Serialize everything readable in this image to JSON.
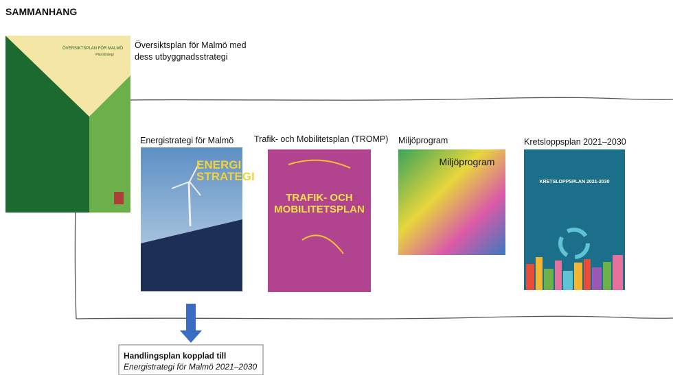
{
  "title": "SAMMANHANG",
  "overview": {
    "label": "Översiktsplan för Malmö med dess utbyggnadsstrategi",
    "cover_title": "ÖVERSIKTSPLAN FÖR MALMÖ",
    "cover_subtitle": "Planstrategi"
  },
  "documents": [
    {
      "label": "Energistrategi för Malmö",
      "cover_title": "ENERGI STRATEGI"
    },
    {
      "label": "Trafik- och Mobilitetsplan (TROMP)",
      "cover_title": "TRAFIK- OCH MOBILITETSPLAN"
    },
    {
      "label": "Miljöprogram",
      "cover_title": "Miljöprogram"
    },
    {
      "label": "Kretsloppsplan 2021–2030",
      "cover_title": "KRETSLOPPSPLAN 2021-2030"
    }
  ],
  "action_plan": {
    "title": "Handlingsplan kopplad till",
    "subtitle": "Energistrategi för Malmö 2021–2030"
  }
}
